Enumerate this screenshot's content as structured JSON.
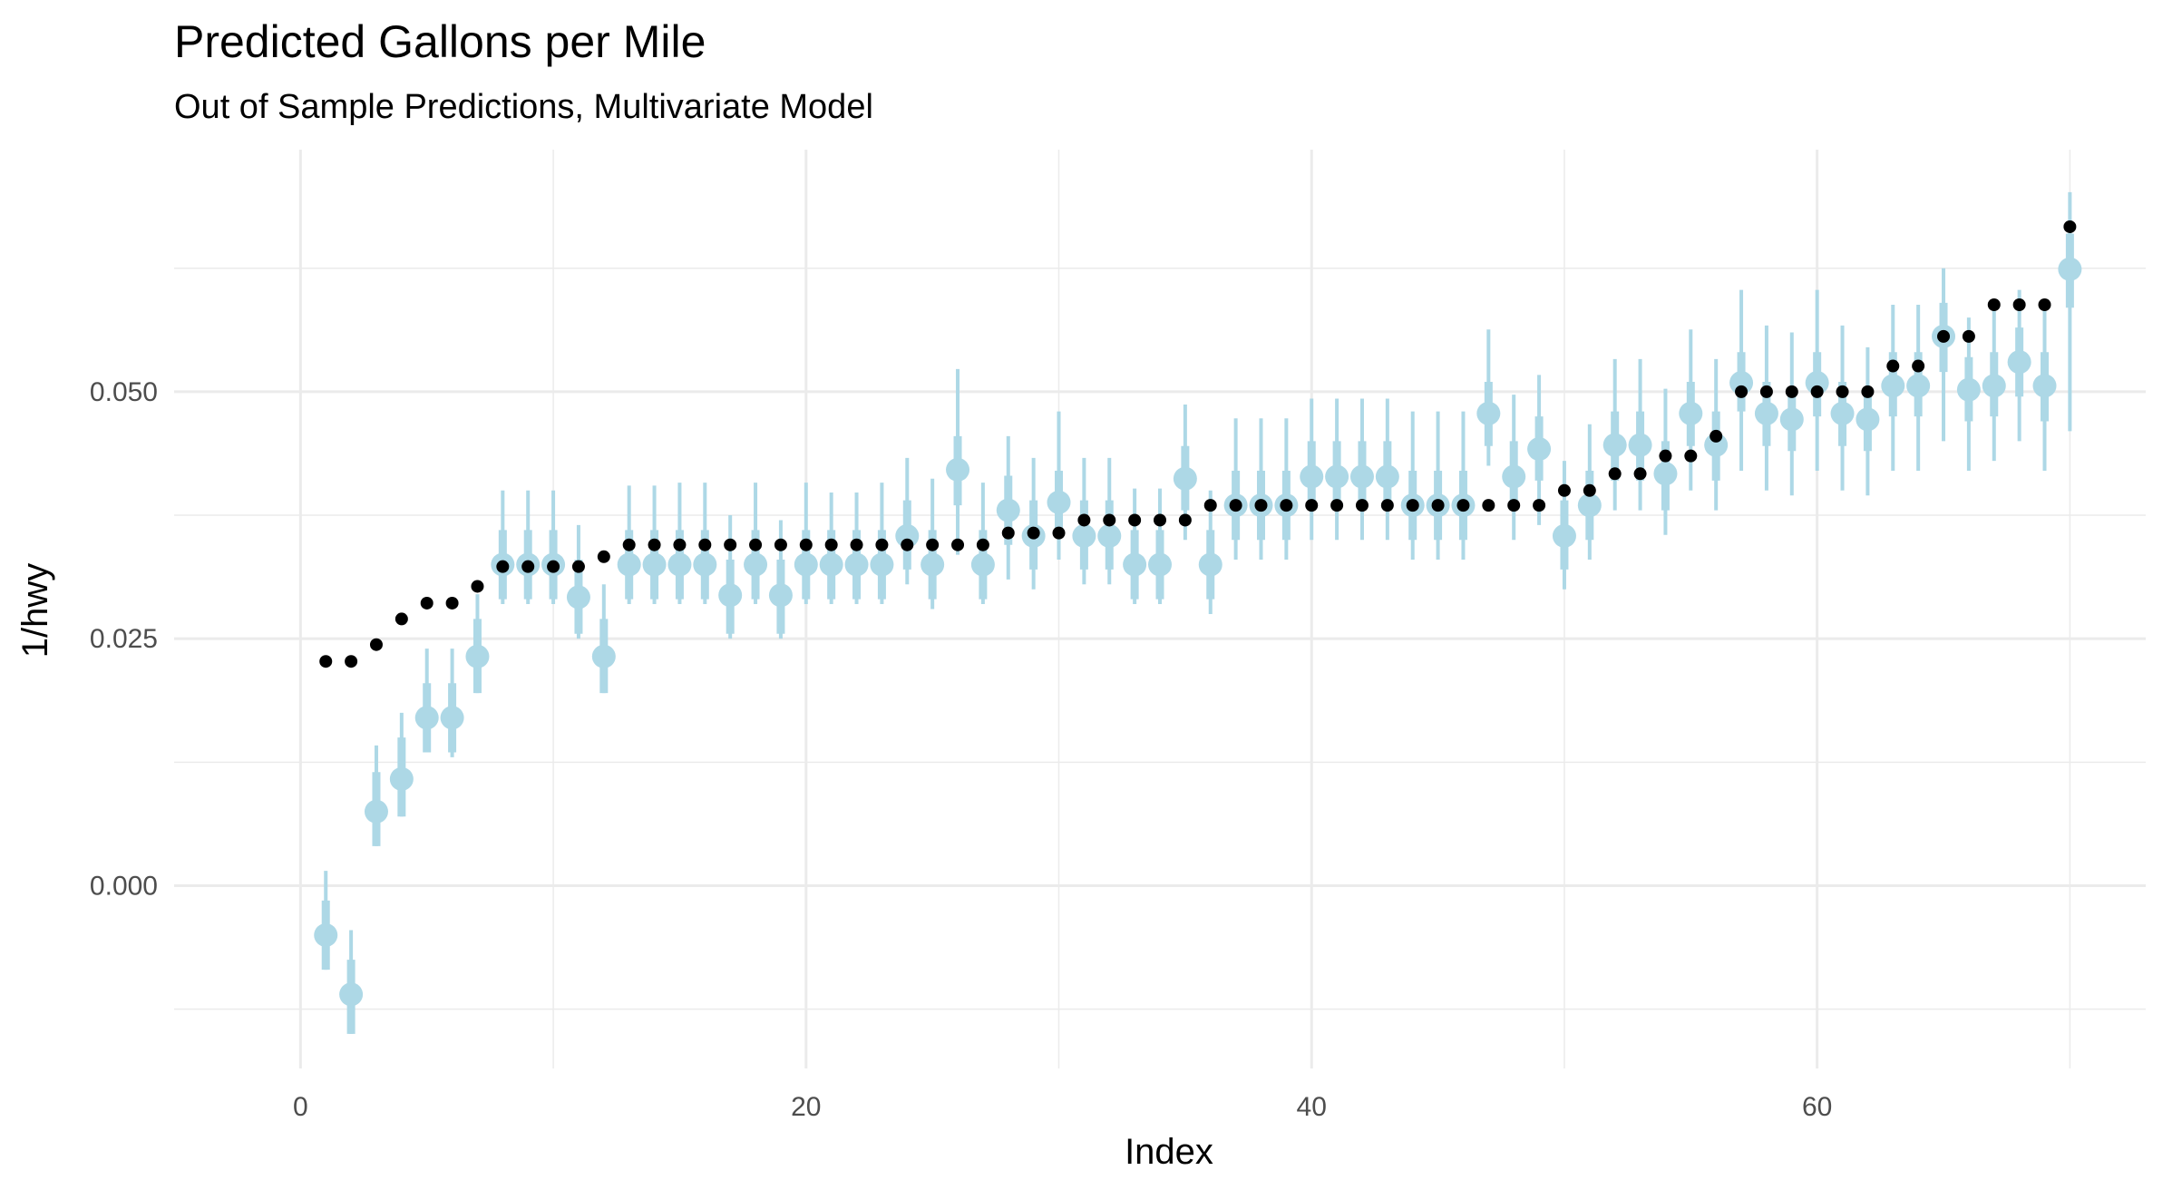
{
  "chart_data": {
    "type": "scatter",
    "title": "Predicted Gallons per Mile",
    "subtitle": "Out of Sample Predictions, Multivariate Model",
    "xlabel": "Index",
    "ylabel": "1/hwy",
    "xlim": [
      -5,
      73
    ],
    "ylim": [
      -0.0185,
      0.0745
    ],
    "x_ticks": [
      0,
      20,
      40,
      60
    ],
    "x_tick_labels": [
      "0",
      "20",
      "40",
      "60"
    ],
    "x_minor_ticks": [
      10,
      30,
      50,
      70
    ],
    "y_ticks": [
      0.0,
      0.025,
      0.05
    ],
    "y_tick_labels": [
      "0.000",
      "0.025",
      "0.050"
    ],
    "y_minor_ticks": [
      -0.0125,
      0.0125,
      0.0375,
      0.0625
    ],
    "grid": true,
    "legend": "none",
    "colors": {
      "prediction": "#add8e6",
      "observed": "#000000",
      "grid": "#ebebeb"
    },
    "series": [
      {
        "role": "observed",
        "x": [
          1,
          2,
          3,
          4,
          5,
          6,
          7,
          8,
          9,
          10,
          11,
          12,
          13,
          14,
          15,
          16,
          17,
          18,
          19,
          20,
          21,
          22,
          23,
          24,
          25,
          26,
          27,
          28,
          29,
          30,
          31,
          32,
          33,
          34,
          35,
          36,
          37,
          38,
          39,
          40,
          41,
          42,
          43,
          44,
          45,
          46,
          47,
          48,
          49,
          50,
          51,
          52,
          53,
          54,
          55,
          56,
          57,
          58,
          59,
          60,
          61,
          62,
          63,
          64,
          65,
          66,
          67,
          68,
          69,
          70
        ],
        "y": [
          0.0227,
          0.0227,
          0.0244,
          0.027,
          0.0286,
          0.0286,
          0.0303,
          0.0323,
          0.0323,
          0.0323,
          0.0323,
          0.0333,
          0.0345,
          0.0345,
          0.0345,
          0.0345,
          0.0345,
          0.0345,
          0.0345,
          0.0345,
          0.0345,
          0.0345,
          0.0345,
          0.0345,
          0.0345,
          0.0345,
          0.0345,
          0.0357,
          0.0357,
          0.0357,
          0.037,
          0.037,
          0.037,
          0.037,
          0.037,
          0.0385,
          0.0385,
          0.0385,
          0.0385,
          0.0385,
          0.0385,
          0.0385,
          0.0385,
          0.0385,
          0.0385,
          0.0385,
          0.0385,
          0.0385,
          0.0385,
          0.04,
          0.04,
          0.0417,
          0.0417,
          0.0435,
          0.0435,
          0.0455,
          0.05,
          0.05,
          0.05,
          0.05,
          0.05,
          0.05,
          0.0526,
          0.0526,
          0.0556,
          0.0556,
          0.0588,
          0.0588,
          0.0588,
          0.0667
        ]
      },
      {
        "role": "prediction",
        "x": [
          1,
          2,
          3,
          4,
          5,
          6,
          7,
          8,
          9,
          10,
          11,
          12,
          13,
          14,
          15,
          16,
          17,
          18,
          19,
          20,
          21,
          22,
          23,
          24,
          25,
          26,
          27,
          28,
          29,
          30,
          31,
          32,
          33,
          34,
          35,
          36,
          37,
          38,
          39,
          40,
          41,
          42,
          43,
          44,
          45,
          46,
          47,
          48,
          49,
          50,
          51,
          52,
          53,
          54,
          55,
          56,
          57,
          58,
          59,
          60,
          61,
          62,
          63,
          64,
          65,
          66,
          67,
          68,
          69,
          70
        ],
        "y": [
          -0.005,
          -0.011,
          0.0075,
          0.0108,
          0.017,
          0.017,
          0.0232,
          0.0325,
          0.0325,
          0.0325,
          0.0292,
          0.0232,
          0.0325,
          0.0325,
          0.0325,
          0.0325,
          0.0294,
          0.0325,
          0.0294,
          0.0325,
          0.0325,
          0.0325,
          0.0325,
          0.0354,
          0.0325,
          0.0421,
          0.0325,
          0.038,
          0.0354,
          0.0388,
          0.0354,
          0.0354,
          0.0325,
          0.0325,
          0.0412,
          0.0325,
          0.0385,
          0.0385,
          0.0385,
          0.0414,
          0.0414,
          0.0414,
          0.0414,
          0.0385,
          0.0385,
          0.0385,
          0.0478,
          0.0414,
          0.0442,
          0.0354,
          0.0385,
          0.0446,
          0.0446,
          0.0417,
          0.0478,
          0.0446,
          0.0509,
          0.0478,
          0.0472,
          0.0509,
          0.0478,
          0.0472,
          0.0506,
          0.0506,
          0.0556,
          0.0502,
          0.0506,
          0.053,
          0.0506,
          0.0624
        ],
        "inner_low": [
          -0.0085,
          -0.015,
          0.004,
          0.007,
          0.0135,
          0.0135,
          0.0195,
          0.029,
          0.029,
          0.029,
          0.0255,
          0.0195,
          0.029,
          0.029,
          0.029,
          0.029,
          0.0255,
          0.029,
          0.0255,
          0.029,
          0.029,
          0.029,
          0.029,
          0.032,
          0.029,
          0.0385,
          0.029,
          0.0345,
          0.032,
          0.0355,
          0.032,
          0.032,
          0.029,
          0.029,
          0.038,
          0.029,
          0.035,
          0.035,
          0.035,
          0.038,
          0.038,
          0.038,
          0.038,
          0.035,
          0.035,
          0.035,
          0.0445,
          0.038,
          0.041,
          0.032,
          0.035,
          0.041,
          0.041,
          0.038,
          0.0445,
          0.041,
          0.048,
          0.0445,
          0.044,
          0.0475,
          0.0445,
          0.044,
          0.0475,
          0.0475,
          0.052,
          0.047,
          0.0475,
          0.0495,
          0.047,
          0.0585
        ],
        "inner_high": [
          -0.0015,
          -0.0075,
          0.0115,
          0.015,
          0.0205,
          0.0205,
          0.027,
          0.036,
          0.036,
          0.036,
          0.033,
          0.027,
          0.036,
          0.036,
          0.036,
          0.036,
          0.033,
          0.036,
          0.033,
          0.036,
          0.036,
          0.036,
          0.036,
          0.039,
          0.036,
          0.0455,
          0.036,
          0.0415,
          0.039,
          0.042,
          0.039,
          0.039,
          0.036,
          0.036,
          0.0445,
          0.036,
          0.042,
          0.042,
          0.042,
          0.045,
          0.045,
          0.045,
          0.045,
          0.042,
          0.042,
          0.042,
          0.051,
          0.045,
          0.0475,
          0.039,
          0.042,
          0.048,
          0.048,
          0.045,
          0.051,
          0.048,
          0.054,
          0.051,
          0.0505,
          0.054,
          0.051,
          0.0505,
          0.054,
          0.054,
          0.059,
          0.0535,
          0.054,
          0.0565,
          0.054,
          0.066
        ],
        "outer_low": [
          -0.0085,
          -0.015,
          0.004,
          0.007,
          0.0135,
          0.013,
          0.0195,
          0.0285,
          0.0285,
          0.0285,
          0.025,
          0.0195,
          0.0285,
          0.0285,
          0.0285,
          0.0285,
          0.025,
          0.0285,
          0.025,
          0.0285,
          0.0285,
          0.0285,
          0.0285,
          0.0305,
          0.028,
          0.0335,
          0.0285,
          0.031,
          0.03,
          0.033,
          0.0305,
          0.0305,
          0.0285,
          0.0285,
          0.035,
          0.0275,
          0.033,
          0.033,
          0.033,
          0.035,
          0.035,
          0.035,
          0.035,
          0.033,
          0.033,
          0.033,
          0.0425,
          0.035,
          0.0365,
          0.03,
          0.033,
          0.038,
          0.038,
          0.0355,
          0.04,
          0.038,
          0.042,
          0.04,
          0.0395,
          0.042,
          0.04,
          0.0395,
          0.042,
          0.042,
          0.045,
          0.042,
          0.043,
          0.045,
          0.042,
          0.046
        ],
        "outer_high": [
          0.0015,
          -0.0045,
          0.0142,
          0.0175,
          0.024,
          0.024,
          0.0295,
          0.04,
          0.04,
          0.04,
          0.0365,
          0.0305,
          0.0405,
          0.0405,
          0.0408,
          0.0408,
          0.0375,
          0.0408,
          0.037,
          0.0408,
          0.0398,
          0.0398,
          0.0408,
          0.0433,
          0.0412,
          0.0523,
          0.0408,
          0.0455,
          0.0433,
          0.048,
          0.0433,
          0.0433,
          0.0402,
          0.0402,
          0.0487,
          0.04,
          0.0473,
          0.0473,
          0.0473,
          0.0493,
          0.0493,
          0.0493,
          0.0493,
          0.048,
          0.048,
          0.048,
          0.0563,
          0.0497,
          0.0517,
          0.043,
          0.0467,
          0.0533,
          0.0533,
          0.0503,
          0.0563,
          0.0533,
          0.0603,
          0.0567,
          0.056,
          0.0603,
          0.0567,
          0.0545,
          0.0588,
          0.0588,
          0.0625,
          0.0575,
          0.0588,
          0.0603,
          0.0588,
          0.0702
        ]
      }
    ]
  }
}
